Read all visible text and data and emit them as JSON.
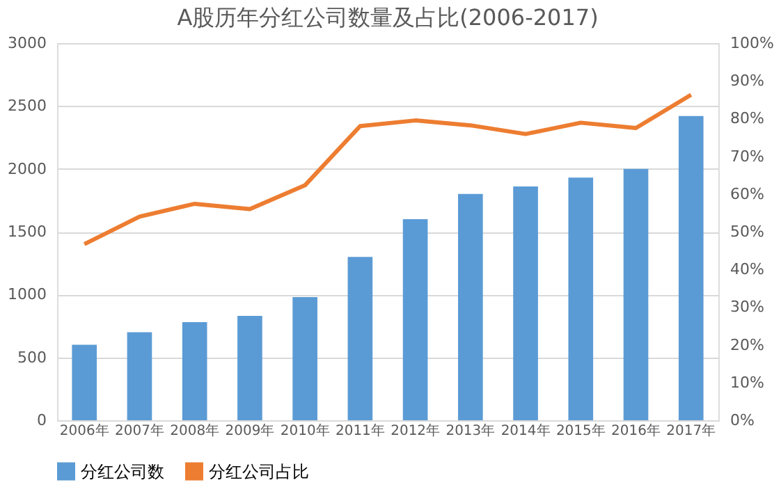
{
  "chart_data": {
    "type": "bar",
    "title": "A股历年分红公司数量及占比(2006-2017)",
    "categories": [
      "2006年",
      "2007年",
      "2008年",
      "2009年",
      "2010年",
      "2011年",
      "2012年",
      "2013年",
      "2014年",
      "2015年",
      "2016年",
      "2017年"
    ],
    "series": [
      {
        "name": "分红公司数",
        "color": "#5b9bd5",
        "values": [
          600,
          700,
          780,
          830,
          980,
          1300,
          1600,
          1800,
          1860,
          1930,
          2000,
          2420
        ]
      },
      {
        "name": "分红公司占比",
        "type": "line",
        "axis": "y2",
        "color": "#ed7d31",
        "values": [
          46.7,
          54,
          57.4,
          56,
          62.3,
          78,
          79.5,
          78.2,
          75.9,
          78.9,
          77.5,
          86.3
        ]
      }
    ],
    "ylim": [
      0,
      3000
    ],
    "yticks": [
      0,
      500,
      1000,
      1500,
      2000,
      2500,
      3000
    ],
    "y2lim": [
      0,
      100
    ],
    "y2ticks": [
      {
        "value": 0,
        "label": "0%"
      },
      {
        "value": 10,
        "label": "10%"
      },
      {
        "value": 20,
        "label": "20%"
      },
      {
        "value": 30,
        "label": "30%"
      },
      {
        "value": 40,
        "label": "40%"
      },
      {
        "value": 50,
        "label": "50%"
      },
      {
        "value": 60,
        "label": "60%"
      },
      {
        "value": 70,
        "label": "70%"
      },
      {
        "value": 80,
        "label": "80%"
      },
      {
        "value": 90,
        "label": "90%"
      },
      {
        "value": 100,
        "label": "100%"
      }
    ],
    "grid": "y",
    "legend": "bottom",
    "marker": "none",
    "line_style": "solid"
  }
}
